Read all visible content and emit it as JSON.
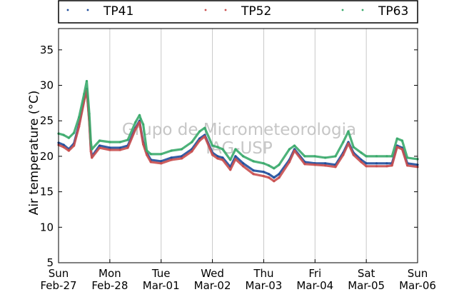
{
  "chart_data": {
    "type": "line",
    "ylabel": "Air temperature (°C)",
    "ylim": [
      5,
      38
    ],
    "yticks": [
      5,
      10,
      15,
      20,
      25,
      30,
      35
    ],
    "xlim": [
      0,
      7
    ],
    "xticks": [
      {
        "x": 0,
        "day": "Sun",
        "date": "Feb-27"
      },
      {
        "x": 1,
        "day": "Mon",
        "date": "Feb-28"
      },
      {
        "x": 2,
        "day": "Tue",
        "date": "Mar-01"
      },
      {
        "x": 3,
        "day": "Wed",
        "date": "Mar-02"
      },
      {
        "x": 4,
        "day": "Thu",
        "date": "Mar-03"
      },
      {
        "x": 5,
        "day": "Fri",
        "date": "Mar-04"
      },
      {
        "x": 6,
        "day": "Sat",
        "date": "Mar-05"
      },
      {
        "x": 7,
        "day": "Sun",
        "date": "Mar-06"
      }
    ],
    "grid": "vertical",
    "legend_position": "top",
    "watermark": [
      "Grupo de Micrometeorologia",
      "IAG-USP"
    ],
    "series": [
      {
        "name": "TP41",
        "color": "#1f4e9c",
        "x": [
          0,
          0.1,
          0.2,
          0.3,
          0.4,
          0.5,
          0.55,
          0.6,
          0.63,
          0.65,
          0.8,
          1.0,
          1.2,
          1.35,
          1.5,
          1.58,
          1.6,
          1.65,
          1.72,
          1.8,
          2.0,
          2.2,
          2.4,
          2.6,
          2.75,
          2.85,
          3.0,
          3.1,
          3.2,
          3.35,
          3.45,
          3.6,
          3.8,
          4.0,
          4.1,
          4.2,
          4.3,
          4.5,
          4.6,
          4.8,
          5.0,
          5.2,
          5.4,
          5.55,
          5.65,
          5.75,
          5.9,
          6.0,
          6.2,
          6.4,
          6.5,
          6.6,
          6.7,
          6.8,
          7.0
        ],
        "y": [
          21.9,
          21.6,
          21.0,
          21.8,
          24.5,
          28.0,
          29.5,
          25.0,
          21.0,
          20.0,
          21.5,
          21.2,
          21.2,
          21.5,
          24.0,
          25.0,
          24.0,
          22.0,
          20.5,
          19.5,
          19.3,
          19.8,
          20.0,
          21.0,
          22.5,
          23.0,
          20.5,
          20.0,
          19.8,
          18.5,
          20.0,
          19.0,
          18.0,
          17.8,
          17.5,
          17.0,
          17.5,
          19.5,
          21.0,
          19.2,
          19.0,
          19.0,
          18.8,
          20.5,
          22.0,
          20.5,
          19.5,
          19.0,
          19.0,
          19.0,
          19.0,
          21.5,
          21.2,
          19.0,
          18.8
        ]
      },
      {
        "name": "TP52",
        "color": "#c94f4f",
        "x": [
          0,
          0.1,
          0.2,
          0.3,
          0.4,
          0.5,
          0.55,
          0.6,
          0.63,
          0.65,
          0.8,
          1.0,
          1.2,
          1.35,
          1.5,
          1.58,
          1.6,
          1.65,
          1.72,
          1.8,
          2.0,
          2.2,
          2.4,
          2.6,
          2.75,
          2.85,
          3.0,
          3.1,
          3.2,
          3.35,
          3.45,
          3.6,
          3.8,
          4.0,
          4.1,
          4.2,
          4.3,
          4.5,
          4.6,
          4.8,
          5.0,
          5.2,
          5.4,
          5.55,
          5.65,
          5.75,
          5.9,
          6.0,
          6.2,
          6.4,
          6.5,
          6.6,
          6.7,
          6.8,
          7.0
        ],
        "y": [
          21.6,
          21.3,
          20.8,
          21.5,
          24.2,
          27.8,
          29.3,
          24.8,
          20.7,
          19.8,
          21.2,
          20.9,
          20.9,
          21.2,
          23.8,
          24.8,
          23.8,
          21.7,
          20.2,
          19.2,
          19.0,
          19.5,
          19.7,
          20.7,
          22.2,
          22.8,
          20.2,
          19.7,
          19.5,
          18.1,
          19.6,
          18.6,
          17.5,
          17.2,
          17.0,
          16.5,
          17.0,
          19.2,
          20.8,
          18.9,
          18.8,
          18.7,
          18.5,
          20.2,
          21.8,
          20.2,
          19.2,
          18.6,
          18.6,
          18.6,
          18.7,
          21.3,
          21.0,
          18.7,
          18.5
        ]
      },
      {
        "name": "TP63",
        "color": "#3aaa6c",
        "x": [
          0,
          0.1,
          0.2,
          0.3,
          0.4,
          0.5,
          0.55,
          0.6,
          0.63,
          0.65,
          0.8,
          1.0,
          1.2,
          1.35,
          1.5,
          1.58,
          1.6,
          1.65,
          1.72,
          1.8,
          2.0,
          2.2,
          2.4,
          2.6,
          2.75,
          2.85,
          3.0,
          3.1,
          3.2,
          3.35,
          3.45,
          3.6,
          3.8,
          4.0,
          4.1,
          4.2,
          4.3,
          4.5,
          4.6,
          4.8,
          5.0,
          5.2,
          5.4,
          5.55,
          5.65,
          5.75,
          5.9,
          6.0,
          6.2,
          6.4,
          6.5,
          6.6,
          6.7,
          6.8,
          7.0
        ],
        "y": [
          23.2,
          23.0,
          22.6,
          23.3,
          25.5,
          28.8,
          30.6,
          26.0,
          22.0,
          21.0,
          22.2,
          22.0,
          22.0,
          22.3,
          24.8,
          25.8,
          25.3,
          24.5,
          20.8,
          20.3,
          20.3,
          20.8,
          21.0,
          22.0,
          23.5,
          24.0,
          21.5,
          21.3,
          21.0,
          19.5,
          21.0,
          20.0,
          19.3,
          19.0,
          18.7,
          18.3,
          18.8,
          21.0,
          21.5,
          20.0,
          20.0,
          19.8,
          20.0,
          22.0,
          23.5,
          21.3,
          20.5,
          20.0,
          20.0,
          20.0,
          20.0,
          22.5,
          22.2,
          19.8,
          19.6
        ]
      }
    ]
  }
}
